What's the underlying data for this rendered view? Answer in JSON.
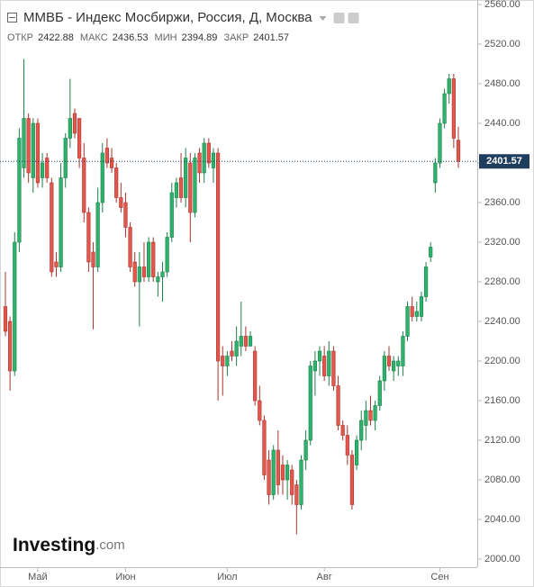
{
  "chart_data": {
    "type": "candlestick",
    "title": "ММВБ - Индекс Мосбиржи, Россия, Д, Москва",
    "ohlc_labels": [
      "ОТКР",
      "МАКС",
      "МИН",
      "ЗАКР"
    ],
    "logo": {
      "name": "Investing",
      "suffix": ".com"
    },
    "up_color": "#2db36b",
    "down_color": "#e4574d",
    "last_price_color": "#1f3d5c",
    "categories": [
      null,
      null,
      null,
      null,
      null,
      null,
      null,
      "Май",
      null,
      null,
      null,
      null,
      null,
      null,
      null,
      null,
      null,
      null,
      null,
      null,
      null,
      null,
      null,
      null,
      null,
      null,
      "Июн",
      null,
      null,
      null,
      null,
      null,
      null,
      null,
      null,
      null,
      null,
      null,
      null,
      null,
      null,
      null,
      null,
      null,
      null,
      null,
      null,
      null,
      "Июл",
      null,
      null,
      null,
      null,
      null,
      null,
      null,
      null,
      null,
      null,
      null,
      null,
      null,
      null,
      null,
      null,
      null,
      null,
      null,
      null,
      "Авг",
      null,
      null,
      null,
      null,
      null,
      null,
      null,
      null,
      null,
      null,
      null,
      null,
      null,
      null,
      null,
      null,
      null,
      null,
      null,
      null,
      null,
      null,
      null,
      null,
      "Сен",
      null,
      null,
      null,
      null
    ],
    "open": [
      2255,
      2240,
      2190,
      2320,
      2395,
      2445,
      2385,
      2440,
      2385,
      2405,
      2380,
      2300,
      2295,
      2385,
      2425,
      2450,
      2445,
      2405,
      2350,
      2310,
      2295,
      2360,
      2415,
      2405,
      2395,
      2365,
      2360,
      2335,
      2300,
      2280,
      2295,
      2285,
      2320,
      2280,
      2285,
      2290,
      2325,
      2365,
      2385,
      2365,
      2400,
      2350,
      2410,
      2390,
      2420,
      2395,
      2410,
      2205,
      2195,
      2210,
      2205,
      2215,
      2225,
      2215,
      2210,
      2160,
      2140,
      2100,
      2065,
      2110,
      2095,
      2080,
      2090,
      2075,
      2055,
      2100,
      2120,
      2190,
      2200,
      2205,
      2185,
      2210,
      2175,
      2135,
      2125,
      2105,
      2095,
      2120,
      2135,
      2150,
      2140,
      2155,
      2180,
      2205,
      2190,
      2195,
      2195,
      2225,
      2255,
      2245,
      2245,
      2265,
      2305,
      2380,
      2400,
      2440,
      2470,
      2485,
      2422.88
    ],
    "high": [
      2290,
      2245,
      2330,
      2435,
      2505,
      2450,
      2445,
      2445,
      2410,
      2410,
      2385,
      2310,
      2400,
      2430,
      2485,
      2455,
      2445,
      2420,
      2355,
      2320,
      2375,
      2420,
      2425,
      2415,
      2400,
      2380,
      2370,
      2340,
      2310,
      2310,
      2320,
      2325,
      2325,
      2290,
      2300,
      2330,
      2380,
      2385,
      2410,
      2415,
      2410,
      2410,
      2415,
      2425,
      2425,
      2415,
      2415,
      2215,
      2210,
      2220,
      2235,
      2260,
      2235,
      2230,
      2215,
      2175,
      2145,
      2110,
      2115,
      2130,
      2105,
      2100,
      2095,
      2080,
      2105,
      2130,
      2200,
      2210,
      2215,
      2215,
      2220,
      2215,
      2185,
      2140,
      2135,
      2110,
      2125,
      2150,
      2160,
      2165,
      2160,
      2185,
      2210,
      2215,
      2205,
      2205,
      2230,
      2260,
      2265,
      2260,
      2270,
      2300,
      2320,
      2405,
      2445,
      2475,
      2490,
      2490,
      2436.53
    ],
    "low": [
      2225,
      2170,
      2185,
      2310,
      2385,
      2380,
      2370,
      2375,
      2375,
      2380,
      2285,
      2285,
      2290,
      2375,
      2415,
      2425,
      2395,
      2340,
      2290,
      2232,
      2290,
      2350,
      2395,
      2390,
      2360,
      2350,
      2325,
      2290,
      2275,
      2235,
      2280,
      2280,
      2280,
      2265,
      2260,
      2285,
      2320,
      2355,
      2360,
      2355,
      2320,
      2345,
      2380,
      2380,
      2395,
      2380,
      2160,
      2165,
      2185,
      2200,
      2195,
      2205,
      2210,
      2215,
      2155,
      2135,
      2080,
      2055,
      2060,
      2065,
      2065,
      2060,
      2055,
      2025,
      2050,
      2090,
      2115,
      2165,
      2185,
      2180,
      2175,
      2170,
      2130,
      2120,
      2095,
      2050,
      2090,
      2110,
      2120,
      2135,
      2130,
      2150,
      2170,
      2190,
      2180,
      2185,
      2185,
      2220,
      2240,
      2240,
      2240,
      2260,
      2300,
      2370,
      2395,
      2435,
      2460,
      2415,
      2394.89
    ],
    "close": [
      2230,
      2190,
      2320,
      2425,
      2445,
      2390,
      2440,
      2380,
      2400,
      2385,
      2290,
      2295,
      2385,
      2425,
      2445,
      2430,
      2405,
      2350,
      2300,
      2295,
      2360,
      2410,
      2400,
      2395,
      2365,
      2355,
      2335,
      2295,
      2280,
      2295,
      2285,
      2320,
      2285,
      2285,
      2290,
      2325,
      2370,
      2380,
      2365,
      2405,
      2350,
      2405,
      2390,
      2420,
      2400,
      2410,
      2200,
      2195,
      2205,
      2205,
      2220,
      2225,
      2215,
      2225,
      2160,
      2140,
      2085,
      2065,
      2110,
      2075,
      2080,
      2095,
      2065,
      2055,
      2100,
      2120,
      2195,
      2200,
      2210,
      2185,
      2210,
      2175,
      2135,
      2125,
      2105,
      2055,
      2120,
      2140,
      2150,
      2140,
      2155,
      2180,
      2205,
      2195,
      2200,
      2200,
      2225,
      2255,
      2245,
      2250,
      2265,
      2295,
      2315,
      2400,
      2440,
      2470,
      2485,
      2425,
      2401.57
    ],
    "ylim": [
      2000,
      2560
    ],
    "yticks": [
      {
        "value": 2000,
        "label": "2000.00"
      },
      {
        "value": 2040,
        "label": "2040.00"
      },
      {
        "value": 2080,
        "label": "2080.00"
      },
      {
        "value": 2120,
        "label": "2120.00"
      },
      {
        "value": 2160,
        "label": "2160.00"
      },
      {
        "value": 2200,
        "label": "2200.00"
      },
      {
        "value": 2240,
        "label": "2240.00"
      },
      {
        "value": 2280,
        "label": "2280.00"
      },
      {
        "value": 2320,
        "label": "2320.00"
      },
      {
        "value": 2360,
        "label": "2360.00"
      },
      {
        "value": 2400,
        "label": "2400.00"
      },
      {
        "value": 2440,
        "label": "2440.00"
      },
      {
        "value": 2480,
        "label": "2480.00"
      },
      {
        "value": 2520,
        "label": "2520.00"
      },
      {
        "value": 2560,
        "label": "2560.00"
      }
    ],
    "grid": false
  }
}
